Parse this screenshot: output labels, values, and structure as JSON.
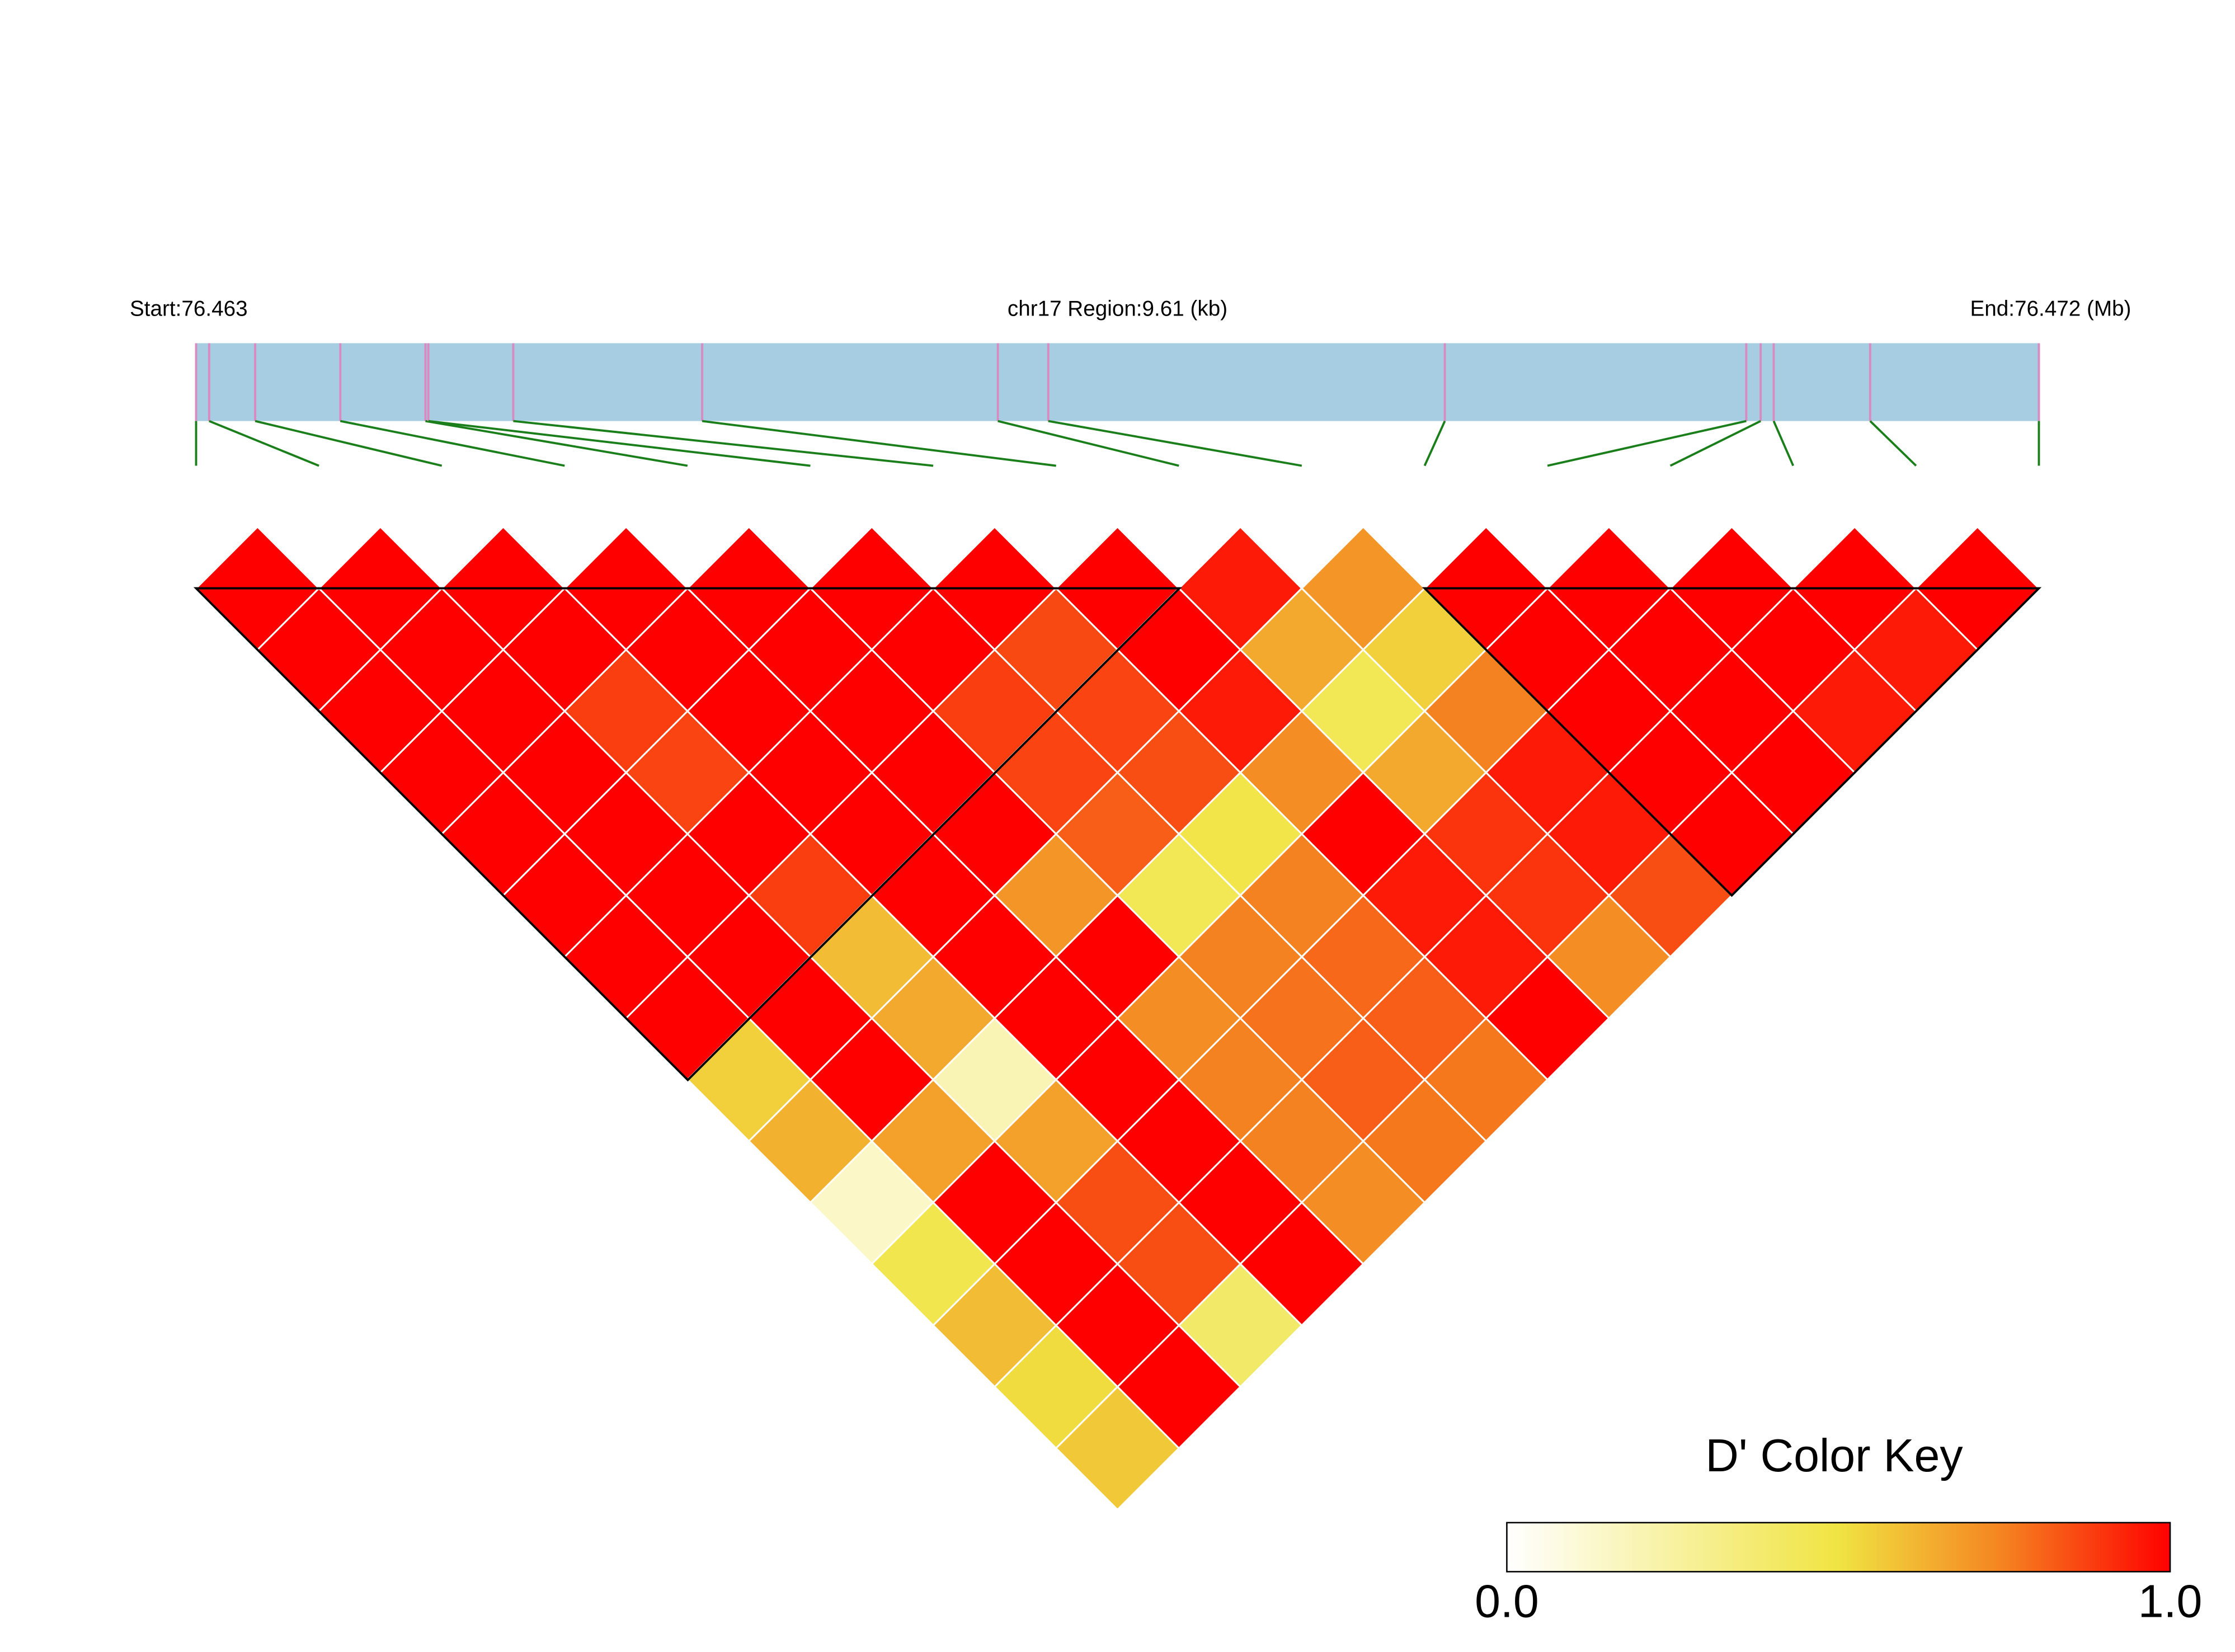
{
  "chart_data": {
    "type": "ld_heatmap",
    "start_label": "Start:76.463",
    "region_label": "chr17 Region:9.61 (kb)",
    "end_label": "End:76.472 (Mb)",
    "xlim": [
      0,
      9.61
    ],
    "snp_positions": [
      0,
      0.068,
      0.308,
      0.752,
      1.196,
      1.211,
      1.654,
      2.639,
      4.181,
      4.444,
      6.512,
      8.084,
      8.159,
      8.227,
      8.73,
      9.61
    ],
    "values": [
      [
        1,
        1,
        1,
        1,
        1,
        1,
        1,
        1,
        0.95,
        0.7,
        1,
        1,
        1,
        1,
        1
      ],
      [
        1,
        1,
        1,
        1,
        1,
        1,
        0.86,
        1,
        0.65,
        0.55,
        1,
        1,
        1,
        0.95
      ],
      [
        1,
        1,
        0.88,
        1,
        1,
        0.88,
        0.87,
        0.95,
        0.45,
        0.75,
        1,
        1,
        0.95
      ],
      [
        1,
        1,
        0.87,
        1,
        1,
        0.87,
        0.85,
        0.72,
        0.65,
        0.95,
        1,
        1
      ],
      [
        1,
        1,
        1,
        1,
        1,
        0.82,
        0.48,
        1,
        0.9,
        0.95,
        1
      ],
      [
        1,
        1,
        0.88,
        1,
        0.7,
        0.45,
        0.75,
        0.95,
        0.9,
        0.85
      ],
      [
        1,
        1,
        0.6,
        1,
        1,
        0.75,
        0.8,
        0.95,
        0.72
      ],
      [
        1,
        1,
        0.65,
        1,
        0.72,
        0.78,
        0.82,
        1
      ],
      [
        0.55,
        1,
        0.2,
        1,
        0.75,
        0.82,
        0.77
      ],
      [
        0.63,
        0.67,
        0.67,
        1,
        0.75,
        0.77
      ],
      [
        0.15,
        1,
        0.85,
        1,
        0.72
      ],
      [
        0.47,
        1,
        0.85,
        1
      ],
      [
        0.6,
        1,
        0.4
      ],
      [
        0.52,
        1
      ],
      [
        0.57
      ]
    ],
    "legend_title": "D' Color Key",
    "legend_ticks": [
      {
        "value": 0,
        "label": "0.0"
      },
      {
        "value": 1,
        "label": "1.0"
      }
    ]
  }
}
